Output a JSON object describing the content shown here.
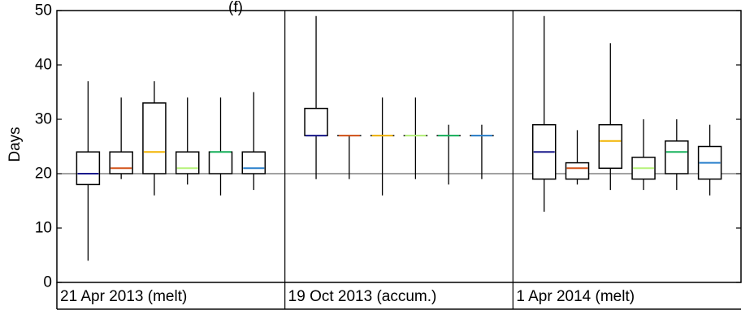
{
  "chart_data": {
    "type": "box",
    "title": "(f)",
    "ylabel": "Days",
    "ylim": [
      0,
      50
    ],
    "yticks": [
      0,
      10,
      20,
      30,
      40,
      50
    ],
    "reference_line": 20,
    "grid": false,
    "series_colors": [
      "#1a1a8c",
      "#d4541a",
      "#f2b400",
      "#b6f27a",
      "#19b35e",
      "#2a80cc"
    ],
    "groups": [
      {
        "label": "21 Apr 2013 (melt)",
        "boxes": [
          {
            "min": 4,
            "q1": 18,
            "median": 20,
            "q3": 24,
            "max": 37
          },
          {
            "min": 19,
            "q1": 20,
            "median": 21,
            "q3": 24,
            "max": 34
          },
          {
            "min": 16,
            "q1": 20,
            "median": 24,
            "q3": 33,
            "max": 37
          },
          {
            "min": 18,
            "q1": 20,
            "median": 21,
            "q3": 24,
            "max": 34
          },
          {
            "min": 16,
            "q1": 20,
            "median": 24,
            "q3": 24,
            "max": 34
          },
          {
            "min": 17,
            "q1": 20,
            "median": 21,
            "q3": 24,
            "max": 35
          }
        ]
      },
      {
        "label": "19 Oct 2013 (accum.)",
        "boxes": [
          {
            "min": 19,
            "q1": 27,
            "median": 27,
            "q3": 32,
            "max": 49
          },
          {
            "min": 19,
            "q1": 27,
            "median": 27,
            "q3": 27,
            "max": 27
          },
          {
            "min": 16,
            "q1": 27,
            "median": 27,
            "q3": 27,
            "max": 34
          },
          {
            "min": 19,
            "q1": 27,
            "median": 27,
            "q3": 27,
            "max": 34
          },
          {
            "min": 18,
            "q1": 27,
            "median": 27,
            "q3": 27,
            "max": 29
          },
          {
            "min": 19,
            "q1": 27,
            "median": 27,
            "q3": 27,
            "max": 29
          }
        ]
      },
      {
        "label": "1 Apr  2014 (melt)",
        "boxes": [
          {
            "min": 13,
            "q1": 19,
            "median": 24,
            "q3": 29,
            "max": 49
          },
          {
            "min": 18,
            "q1": 19,
            "median": 21,
            "q3": 22,
            "max": 28
          },
          {
            "min": 17,
            "q1": 21,
            "median": 26,
            "q3": 29,
            "max": 44
          },
          {
            "min": 17,
            "q1": 19,
            "median": 21,
            "q3": 23,
            "max": 30
          },
          {
            "min": 17,
            "q1": 20,
            "median": 24,
            "q3": 26,
            "max": 30
          },
          {
            "min": 16,
            "q1": 19,
            "median": 22,
            "q3": 25,
            "max": 29
          }
        ]
      }
    ]
  }
}
